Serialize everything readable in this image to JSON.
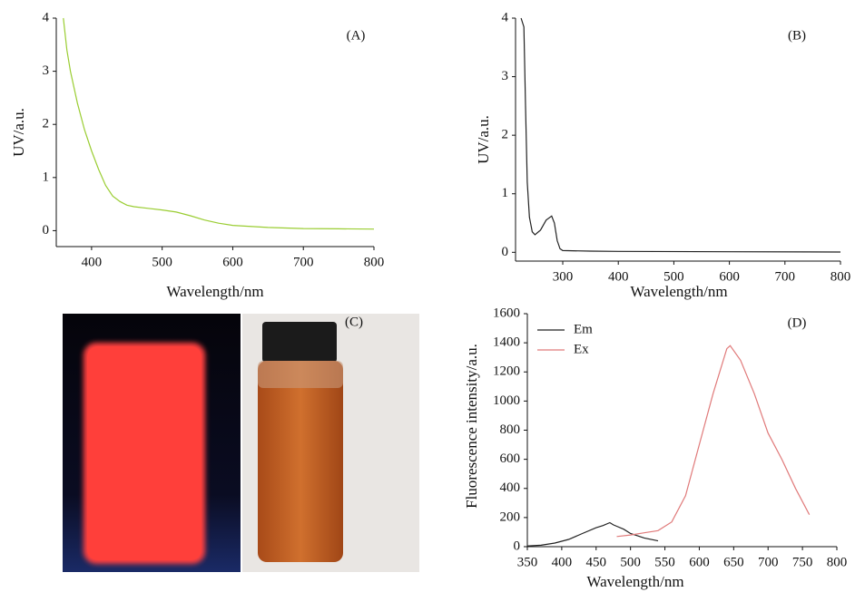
{
  "chart_data": [
    {
      "type": "line",
      "title": "(A)",
      "x_label": "Wavelength/nm",
      "y_label": "UV/a.u.",
      "color": "#9acd32",
      "x": [
        360,
        365,
        370,
        380,
        390,
        400,
        410,
        420,
        430,
        440,
        450,
        460,
        480,
        500,
        520,
        540,
        560,
        580,
        600,
        650,
        700,
        750,
        800
      ],
      "values": [
        4,
        3.4,
        3.0,
        2.4,
        1.9,
        1.5,
        1.15,
        0.85,
        0.65,
        0.55,
        0.48,
        0.45,
        0.42,
        0.39,
        0.35,
        0.28,
        0.2,
        0.14,
        0.1,
        0.06,
        0.04,
        0.035,
        0.03
      ],
      "xlim": [
        350,
        800
      ],
      "ylim": [
        -0.3,
        4
      ],
      "xticks": [
        400,
        500,
        600,
        700,
        800
      ],
      "yticks": [
        0,
        1,
        2,
        3,
        4
      ]
    },
    {
      "type": "line",
      "title": "(B)",
      "x_label": "Wavelength/nm",
      "y_label": "UV/a.u.",
      "color": "#222222",
      "x": [
        225,
        230,
        233,
        236,
        240,
        245,
        250,
        260,
        270,
        280,
        285,
        290,
        295,
        300,
        350,
        400,
        600,
        800
      ],
      "values": [
        4,
        3.85,
        2.5,
        1.2,
        0.6,
        0.35,
        0.3,
        0.38,
        0.55,
        0.62,
        0.5,
        0.2,
        0.06,
        0.03,
        0.02,
        0.015,
        0.01,
        0.005
      ],
      "xlim": [
        215,
        800
      ],
      "ylim": [
        -0.15,
        4
      ],
      "xticks": [
        300,
        400,
        500,
        600,
        700,
        800
      ],
      "yticks": [
        0,
        1,
        2,
        3,
        4
      ]
    },
    {
      "type": "image",
      "title": "(C)"
    },
    {
      "type": "line",
      "title": "(D)",
      "x_label": "Wavelength/nm",
      "y_label": "Fluorescence intensity/a.u.",
      "series": [
        {
          "name": "Em",
          "color": "#222222",
          "x": [
            350,
            370,
            390,
            410,
            430,
            450,
            460,
            470,
            475,
            480,
            490,
            500,
            520,
            540
          ],
          "values": [
            5,
            10,
            25,
            50,
            90,
            130,
            145,
            165,
            150,
            140,
            120,
            90,
            60,
            40
          ]
        },
        {
          "name": "Ex",
          "color": "#e07a7a",
          "x": [
            480,
            500,
            520,
            540,
            560,
            580,
            600,
            620,
            640,
            645,
            660,
            680,
            700,
            720,
            740,
            760
          ],
          "values": [
            70,
            80,
            95,
            110,
            170,
            350,
            700,
            1050,
            1360,
            1380,
            1280,
            1050,
            780,
            600,
            400,
            220
          ]
        }
      ],
      "xlim": [
        350,
        800
      ],
      "ylim": [
        0,
        1600
      ],
      "xticks": [
        350,
        400,
        450,
        500,
        550,
        600,
        650,
        700,
        750,
        800
      ],
      "yticks": [
        0,
        200,
        400,
        600,
        800,
        1000,
        1200,
        1400,
        1600
      ],
      "legend": "top-left"
    }
  ]
}
